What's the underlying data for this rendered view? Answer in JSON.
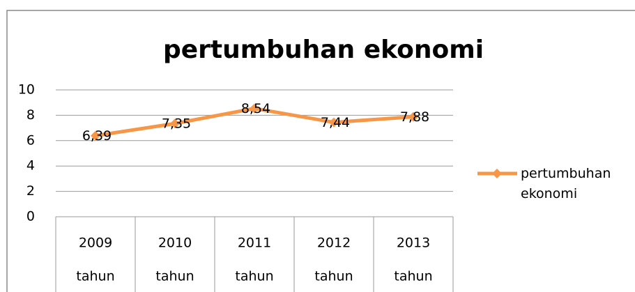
{
  "chart_data": {
    "type": "line",
    "title": "pertumbuhan ekonomi",
    "categories": [
      "2009",
      "2010",
      "2011",
      "2012",
      "2013"
    ],
    "category_sublabels": [
      "tahun",
      "tahun",
      "tahun",
      "tahun",
      "tahun"
    ],
    "series": [
      {
        "name": "pertumbuhan ekonomi",
        "color": "#f79646",
        "values": [
          6.39,
          7.35,
          8.54,
          7.44,
          7.88
        ],
        "value_labels": [
          "6,39",
          "7,35",
          "8,54",
          "7,44",
          "7,88"
        ]
      }
    ],
    "ylim": [
      0,
      10
    ],
    "yticks": [
      0,
      2,
      4,
      6,
      8,
      10
    ],
    "grid": true,
    "legend": "right"
  }
}
